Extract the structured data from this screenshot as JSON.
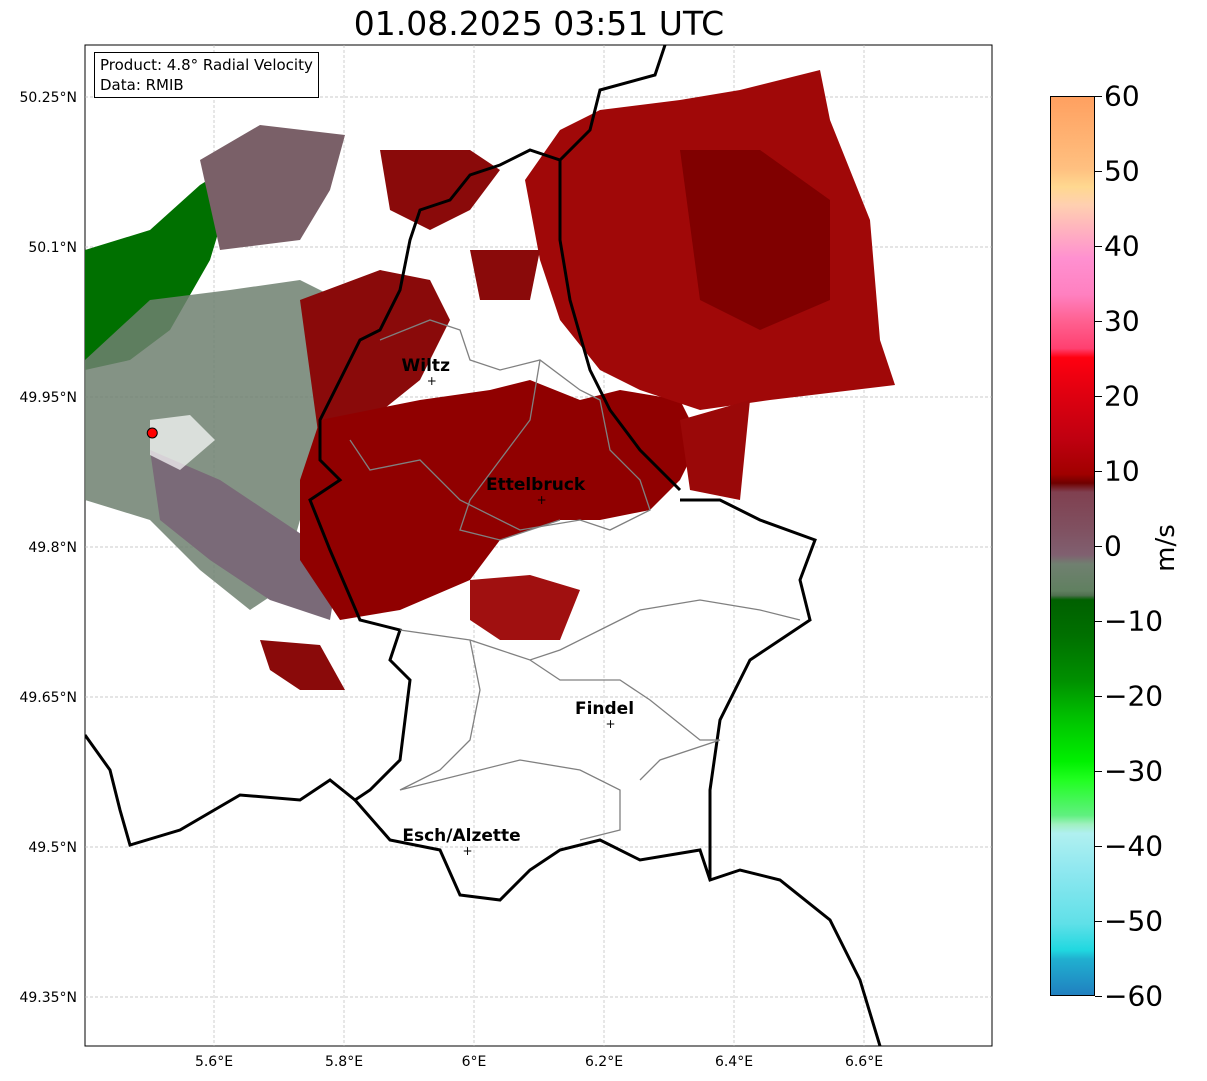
{
  "title": "01.08.2025 03:51 UTC",
  "legend": {
    "product": "Product: 4.8° Radial Velocity",
    "data": "Data: RMIB"
  },
  "axes": {
    "lon_ticks": [
      {
        "v": 5.6,
        "label": "5.6°E"
      },
      {
        "v": 5.8,
        "label": "5.8°E"
      },
      {
        "v": 6.0,
        "label": "6°E"
      },
      {
        "v": 6.2,
        "label": "6.2°E"
      },
      {
        "v": 6.4,
        "label": "6.4°E"
      },
      {
        "v": 6.6,
        "label": "6.6°E"
      }
    ],
    "lat_ticks": [
      {
        "v": 50.25,
        "label": "50.25°N"
      },
      {
        "v": 50.1,
        "label": "50.1°N"
      },
      {
        "v": 49.95,
        "label": "49.95°N"
      },
      {
        "v": 49.8,
        "label": "49.8°N"
      },
      {
        "v": 49.65,
        "label": "49.65°N"
      },
      {
        "v": 49.5,
        "label": "49.5°N"
      },
      {
        "v": 49.35,
        "label": "49.35°N"
      }
    ]
  },
  "cities": [
    {
      "name": "Wiltz",
      "lon": 5.935,
      "lat": 49.966
    },
    {
      "name": "Ettelbruck",
      "lon": 6.104,
      "lat": 49.847
    },
    {
      "name": "Findel",
      "lon": 6.21,
      "lat": 49.623
    },
    {
      "name": "Esch/Alzette",
      "lon": 5.99,
      "lat": 49.496
    }
  ],
  "radar_site": {
    "lon": 5.505,
    "lat": 49.914
  },
  "colorbar": {
    "label": "m/s",
    "min": -60,
    "max": 60,
    "ticks": [
      "60",
      "50",
      "40",
      "30",
      "20",
      "10",
      "0",
      "−10",
      "−20",
      "−30",
      "−40",
      "−50",
      "−60"
    ]
  }
}
